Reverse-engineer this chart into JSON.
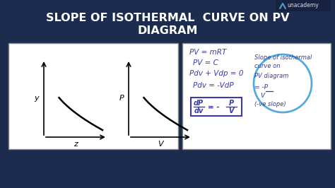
{
  "title_line1": "SLOPE OF ISOTHERMAL  CURVE ON PV",
  "title_line2": "DIAGRAM",
  "title_color": "#FFFFFF",
  "title_fontsize": 11.5,
  "bg_color": "#1b2c4e",
  "panel_edge": "#aaaaaa",
  "graph1_ylabel": "y",
  "graph1_xlabel": "z",
  "graph2_ylabel": "P",
  "graph2_xlabel": "V",
  "eq_color": "#3a3aaa",
  "eq1": "PV = mRT",
  "eq2": "PV = C",
  "eq3": "Pdv + Vdp = 0",
  "eq4": "Pdv = -VdP",
  "box_top": "dP",
  "box_bot": "dv",
  "box_eq": "= -",
  "box_frac_top": "P",
  "box_frac_bot": "V",
  "annot_line1": "Slope of isothermal",
  "annot_line2": "curve on",
  "annot_line3": "PV diagram",
  "annot_line4": "= -P",
  "annot_line5": "    V",
  "annot_line6": "(-ve slope)",
  "ellipse_color": "#55aadd",
  "unacademy_text": "unacademy",
  "unacademy_color": "#dddddd",
  "logo_color": "#5599cc"
}
